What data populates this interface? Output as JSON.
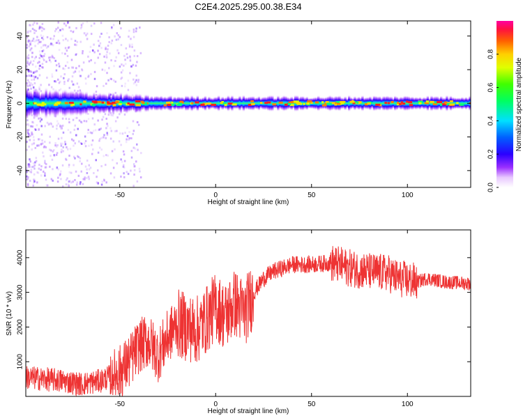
{
  "title": "C2E4.2025.295.00.38.E34",
  "chart_data": [
    {
      "type": "heatmap",
      "xlabel": "Height of straight line (km)",
      "ylabel": "Frequency (Hz)",
      "xlim": [
        -99,
        133
      ],
      "ylim": [
        -50,
        49
      ],
      "xticks": [
        -50,
        0,
        50,
        100
      ],
      "yticks": [
        -40,
        -20,
        0,
        20,
        40
      ],
      "band_center_hz": 0,
      "band_halfwidth_hz": [
        {
          "x": -99,
          "hz": 8
        },
        {
          "x": -60,
          "hz": 6
        },
        {
          "x": -30,
          "hz": 4
        },
        {
          "x": 0,
          "hz": 4
        },
        {
          "x": 50,
          "hz": 4
        },
        {
          "x": 133,
          "hz": 4
        }
      ],
      "colorbar": {
        "label": "Normalized spectral amplitude",
        "range": [
          0,
          1
        ],
        "ticks": [
          "0.0",
          "0.2",
          "0.4",
          "0.6",
          "0.8"
        ]
      }
    },
    {
      "type": "line",
      "xlabel": "Height of straight line (km)",
      "ylabel": "SNR (10 * v/v)",
      "xlim": [
        -99,
        133
      ],
      "ylim": [
        0,
        4800
      ],
      "xticks": [
        -50,
        0,
        50,
        100
      ],
      "yticks": [
        1000,
        2000,
        3000,
        4000
      ],
      "color": "#ee3333",
      "series": [
        {
          "name": "SNR",
          "x": [
            -99,
            -90,
            -80,
            -70,
            -60,
            -50,
            -45,
            -40,
            -35,
            -30,
            -25,
            -20,
            -15,
            -10,
            -5,
            0,
            5,
            10,
            15,
            20,
            25,
            30,
            40,
            50,
            60,
            70,
            80,
            90,
            95,
            100,
            105,
            110,
            120,
            133
          ],
          "y": [
            550,
            500,
            450,
            350,
            450,
            700,
            1000,
            1450,
            1600,
            1200,
            1700,
            2100,
            2000,
            1900,
            2200,
            2600,
            2300,
            2700,
            2400,
            3000,
            3400,
            3600,
            3800,
            3800,
            3850,
            3700,
            3600,
            3550,
            3400,
            3350,
            3300,
            3400,
            3300,
            3250
          ]
        }
      ]
    }
  ]
}
